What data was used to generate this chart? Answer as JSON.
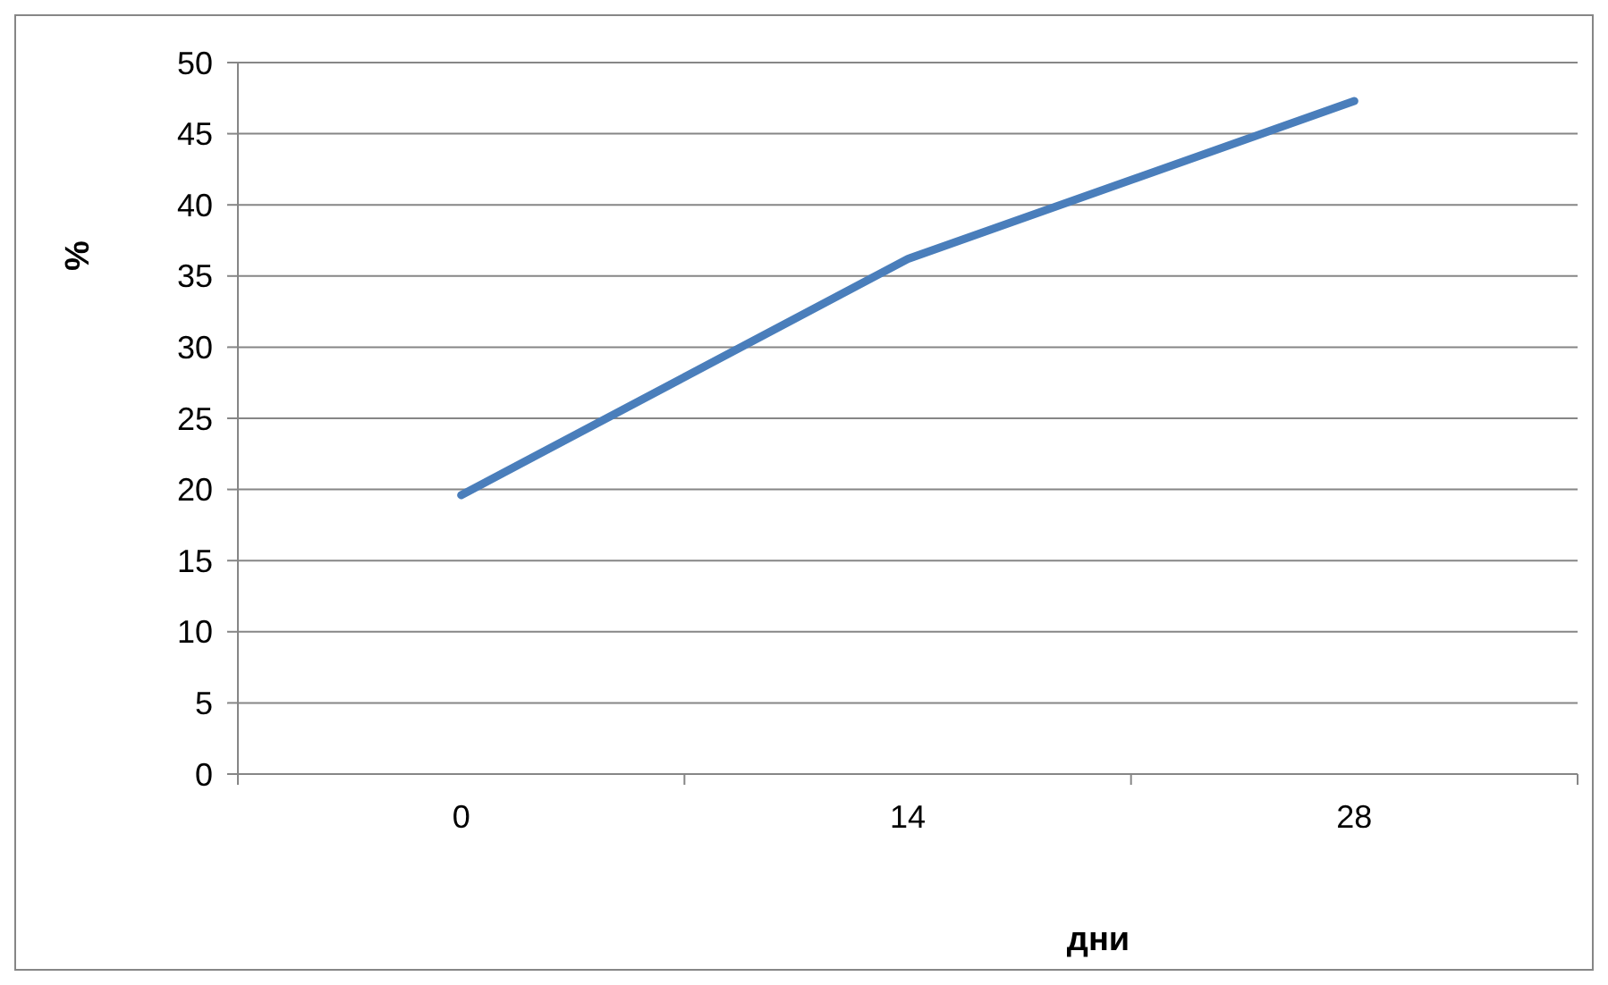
{
  "chart_data": {
    "type": "line",
    "xlabel": "дни",
    "ylabel": "%",
    "categories": [
      "0",
      "14",
      "28"
    ],
    "series": [
      {
        "color": "#4a7ebb",
        "values": [
          19.6,
          36.2,
          47.3
        ]
      }
    ],
    "ylim": [
      0,
      50
    ],
    "yticks": [
      0,
      5,
      10,
      15,
      20,
      25,
      30,
      35,
      40,
      45,
      50
    ],
    "grid": "y",
    "marker": "none",
    "line_style": "solid"
  }
}
